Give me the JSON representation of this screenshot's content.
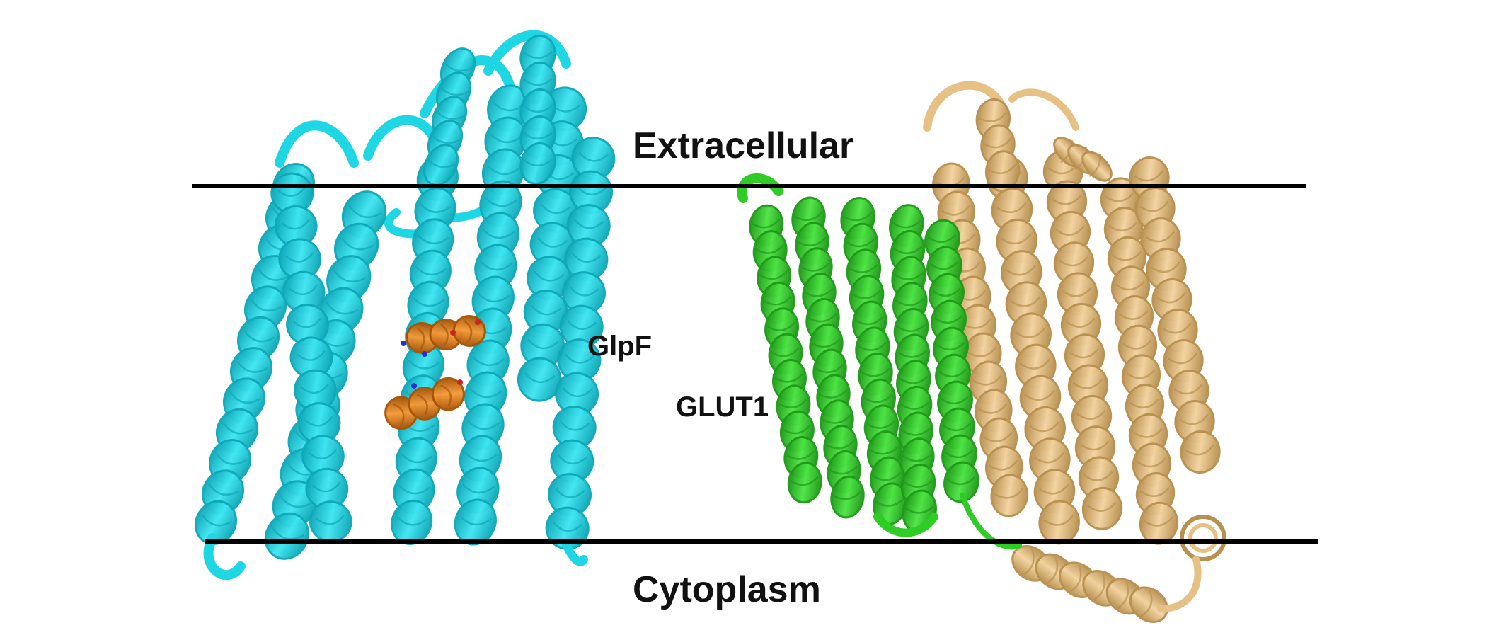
{
  "labels": {
    "extracellular": "Extracellular",
    "cytoplasm": "Cytoplasm",
    "glpf": "GlpF",
    "glut1": "GLUT1"
  },
  "colors": {
    "glpf": "#1ed6e4",
    "glpf_dark": "#0fa8b8",
    "glut1_green": "#2ecc25",
    "glut1_green_dark": "#1f9a19",
    "glut1_tan": "#e7c085",
    "glut1_tan_dark": "#b8904f",
    "peptide": "#e8801a",
    "peptide_dark": "#a85406",
    "membrane_line": "#000000"
  },
  "icons": {
    "glpf": "protein-ribbon-cyan",
    "glut1": "protein-ribbon-green-tan",
    "peptide": "peptide-ribbon-orange"
  }
}
